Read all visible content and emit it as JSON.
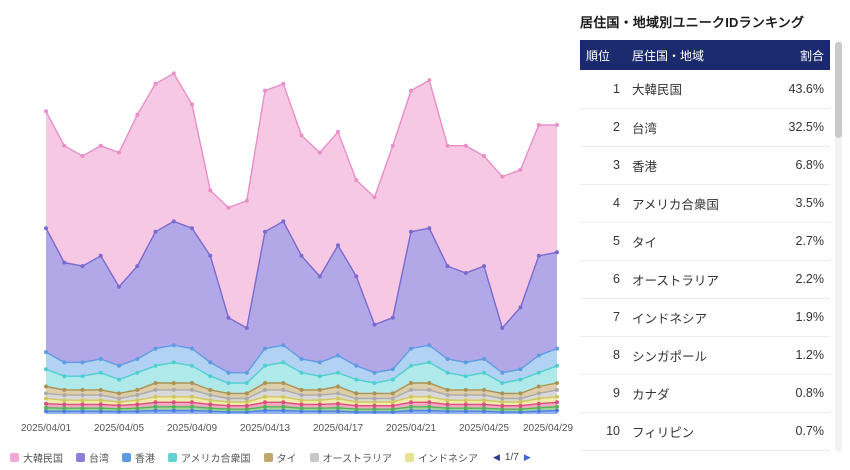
{
  "colors": {
    "table_header_bg": "#1b2a6e",
    "pagination_prev": "#2c3e8c",
    "pagination_next": "#4169d8"
  },
  "panel": {
    "title": "居住国・地域別ユニークIDランキング"
  },
  "table": {
    "headers": [
      "順位",
      "居住国・地域",
      "割合"
    ],
    "rows": [
      {
        "rank": "1",
        "name": "大韓民国",
        "share": "43.6%"
      },
      {
        "rank": "2",
        "name": "台湾",
        "share": "32.5%"
      },
      {
        "rank": "3",
        "name": "香港",
        "share": "6.8%"
      },
      {
        "rank": "4",
        "name": "アメリカ合衆国",
        "share": "3.5%"
      },
      {
        "rank": "5",
        "name": "タイ",
        "share": "2.7%"
      },
      {
        "rank": "6",
        "name": "オーストラリア",
        "share": "2.2%"
      },
      {
        "rank": "7",
        "name": "インドネシア",
        "share": "1.9%"
      },
      {
        "rank": "8",
        "name": "シンガポール",
        "share": "1.2%"
      },
      {
        "rank": "9",
        "name": "カナダ",
        "share": "0.8%"
      },
      {
        "rank": "10",
        "name": "フィリピン",
        "share": "0.7%"
      }
    ]
  },
  "legend": {
    "items": [
      {
        "label": "大韓民国",
        "color": "#f1a9d5"
      },
      {
        "label": "台湾",
        "color": "#8e7fd8"
      },
      {
        "label": "香港",
        "color": "#5e9ce2"
      },
      {
        "label": "アメリカ合衆国",
        "color": "#62d2d2"
      },
      {
        "label": "タイ",
        "color": "#bfa76e"
      },
      {
        "label": "オーストラリア",
        "color": "#c8c8c8"
      },
      {
        "label": "インドネシア",
        "color": "#e8e394"
      }
    ],
    "pagination": {
      "prev": "◀",
      "current": "1/7",
      "next": "▶"
    }
  },
  "chart_data": {
    "type": "area",
    "stacked": true,
    "stack_order": "bottom_to_top",
    "grid": false,
    "legend_position": "bottom",
    "n_points": 29,
    "x_axis": "date",
    "x_tick_labels": [
      "2025/04/01",
      "2025/04/05",
      "2025/04/09",
      "2025/04/13",
      "2025/04/17",
      "2025/04/21",
      "2025/04/25",
      "2025/04/29"
    ],
    "x_tick_indices": [
      0,
      4,
      8,
      12,
      16,
      20,
      24,
      28
    ],
    "y_max": 100,
    "series": [
      {
        "name": "フィリピン",
        "fill": "#86abef",
        "stroke": "#4e7de4",
        "values": [
          0.8,
          0.8,
          0.8,
          0.8,
          0.7,
          0.8,
          1,
          1,
          1,
          0.8,
          0.6,
          0.6,
          1,
          1,
          0.8,
          0.8,
          0.8,
          0.6,
          0.6,
          0.6,
          1,
          1,
          0.8,
          0.8,
          0.8,
          0.6,
          0.6,
          0.8,
          1
        ]
      },
      {
        "name": "カナダ",
        "fill": "#93d295",
        "stroke": "#55b259",
        "values": [
          1,
          0.9,
          0.9,
          0.9,
          0.8,
          0.9,
          1.1,
          1.1,
          1.1,
          0.9,
          0.8,
          0.8,
          1.1,
          1.1,
          0.9,
          0.9,
          1,
          0.8,
          0.8,
          0.8,
          1.1,
          1.1,
          0.9,
          0.9,
          0.9,
          0.8,
          0.8,
          1,
          1.1
        ]
      },
      {
        "name": "シンガポール",
        "fill": "#f09ebd",
        "stroke": "#d84f80",
        "values": [
          1.2,
          1.1,
          1.1,
          1.1,
          1,
          1.1,
          1.3,
          1.3,
          1.3,
          1.1,
          1,
          1,
          1.3,
          1.3,
          1.1,
          1.1,
          1.2,
          1,
          1,
          1,
          1.3,
          1.3,
          1.1,
          1.1,
          1.1,
          1,
          1,
          1.2,
          1.3
        ]
      },
      {
        "name": "インドネシア",
        "fill": "#eeeaa5",
        "stroke": "#cfc75e",
        "values": [
          1.5,
          1.2,
          1.2,
          1.2,
          1,
          1.2,
          1.6,
          1.6,
          1.6,
          1.2,
          1.1,
          1.1,
          1.6,
          1.6,
          1.2,
          1.2,
          1.5,
          1.1,
          1.1,
          1.1,
          1.6,
          1.6,
          1.2,
          1.2,
          1.2,
          1.1,
          1.1,
          1.5,
          1.6
        ]
      },
      {
        "name": "オーストラリア",
        "fill": "#d5d5d5",
        "stroke": "#ababab",
        "values": [
          1.5,
          1.5,
          1.5,
          1.5,
          1,
          1.5,
          2,
          2,
          2,
          1.5,
          1,
          1,
          2,
          2,
          1.5,
          1.5,
          1.5,
          1,
          1,
          1,
          2,
          2,
          1.5,
          1.5,
          1.5,
          1,
          1,
          1.5,
          2
        ]
      },
      {
        "name": "タイ",
        "fill": "#d9c89e",
        "stroke": "#ab9254",
        "values": [
          2,
          1.5,
          1.5,
          1.5,
          1.5,
          1.5,
          2,
          2,
          2,
          1.5,
          1.5,
          1.5,
          2,
          2,
          1.5,
          1.5,
          2,
          1.5,
          1.5,
          1.5,
          2,
          2,
          1.5,
          1.5,
          1.5,
          1.5,
          1.5,
          2,
          2
        ]
      },
      {
        "name": "アメリカ合衆国",
        "fill": "#a7e7e7",
        "stroke": "#4fcfcf",
        "values": [
          5,
          4,
          4,
          5,
          4,
          5,
          5,
          6,
          5,
          4,
          3,
          3,
          5,
          6,
          5,
          4,
          4,
          4,
          3,
          4,
          5,
          6,
          5,
          4,
          5,
          3,
          4,
          4,
          5
        ]
      },
      {
        "name": "香港",
        "fill": "#aacdf3",
        "stroke": "#5e9ce2",
        "values": [
          5,
          4,
          4,
          4,
          4,
          4,
          5,
          5,
          5,
          4,
          3,
          3,
          5,
          5,
          4,
          4,
          5,
          4,
          3,
          3,
          5,
          5,
          4,
          4,
          4,
          3,
          3,
          5,
          5
        ]
      },
      {
        "name": "台湾",
        "fill": "#aa9fe4",
        "stroke": "#7a6ace",
        "values": [
          36,
          29,
          28,
          30,
          23,
          27,
          34,
          36,
          35,
          31,
          16,
          13,
          34,
          36,
          30,
          25,
          32,
          26,
          14,
          15,
          34,
          34,
          27,
          26,
          27,
          13,
          18,
          29,
          28
        ]
      },
      {
        "name": "大韓民国",
        "fill": "#f5c2e0",
        "stroke": "#e98fc7",
        "values": [
          34,
          34,
          32,
          32,
          39,
          44,
          43,
          43,
          36,
          19,
          32,
          37,
          41,
          40,
          35,
          36,
          33,
          28,
          37,
          50,
          41,
          43,
          35,
          37,
          32,
          44,
          40,
          38,
          37
        ]
      }
    ]
  }
}
